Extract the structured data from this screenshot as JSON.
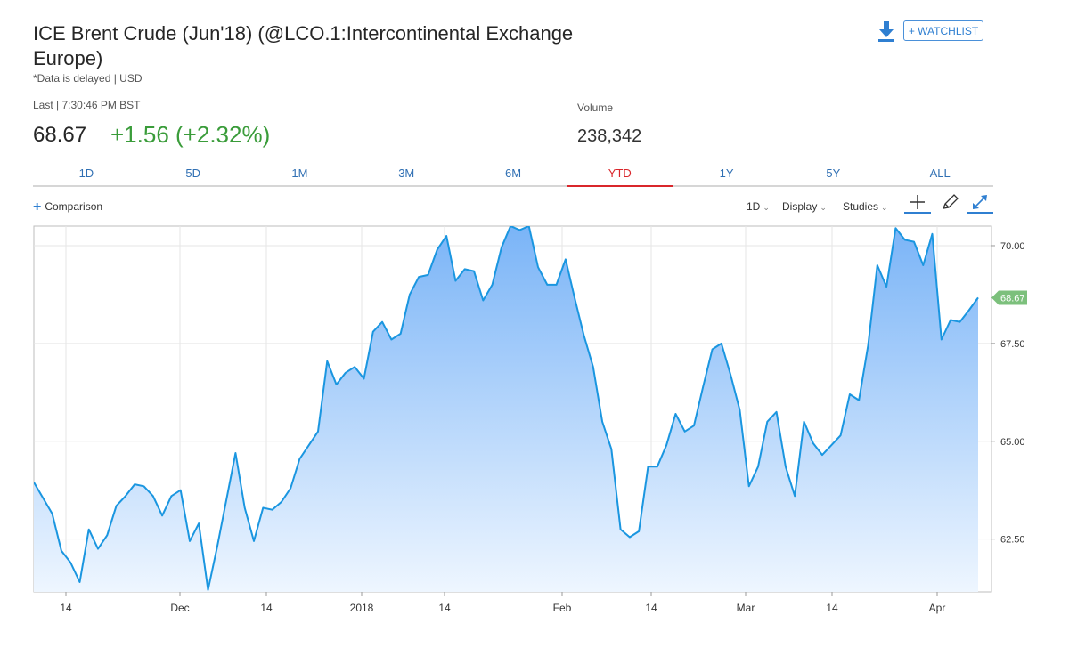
{
  "header": {
    "title": "ICE Brent Crude (Jun'18) (@LCO.1:Intercontinental Exchange Europe)",
    "subtitle": "*Data is delayed | USD",
    "watchlist_label": "+ WATCHLIST",
    "download_icon": "download-icon"
  },
  "quote": {
    "last_label": "Last | 7:30:46 PM BST",
    "last_price": "68.67",
    "change": "+1.56 (+2.32%)",
    "volume_label": "Volume",
    "volume_value": "238,342"
  },
  "tabs": [
    {
      "label": "1D"
    },
    {
      "label": "5D"
    },
    {
      "label": "1M"
    },
    {
      "label": "3M"
    },
    {
      "label": "6M"
    },
    {
      "label": "YTD",
      "active": true
    },
    {
      "label": "1Y"
    },
    {
      "label": "5Y"
    },
    {
      "label": "ALL"
    }
  ],
  "toolbar": {
    "comparison_label": "Comparison",
    "interval_label": "1D",
    "display_label": "Display",
    "studies_label": "Studies"
  },
  "colors": {
    "line": "#1a96e0",
    "area_top": "#7ab4f7",
    "area_bottom": "#eef6ff",
    "positive": "#3a9c3a",
    "active_tab": "#d9262b",
    "last_marker": "#7cc07c"
  },
  "chart_data": {
    "type": "area",
    "x_tick_labels": [
      "14",
      "Dec",
      "14",
      "2018",
      "14",
      "Feb",
      "14",
      "Mar",
      "14",
      "Apr"
    ],
    "y_ticks": [
      "62.50",
      "65.00",
      "67.50",
      "70.00"
    ],
    "y_range": [
      61.15,
      70.5
    ],
    "last_value_label": "68.67",
    "grid": true,
    "values": [
      63.95,
      63.55,
      63.15,
      62.2,
      61.9,
      61.4,
      62.75,
      62.25,
      62.6,
      63.35,
      63.6,
      63.9,
      63.85,
      63.6,
      63.1,
      63.6,
      63.75,
      62.45,
      62.9,
      61.2,
      62.3,
      63.5,
      64.7,
      63.3,
      62.45,
      63.3,
      63.25,
      63.45,
      63.8,
      64.55,
      64.9,
      65.25,
      67.05,
      66.45,
      66.75,
      66.9,
      66.6,
      67.8,
      68.05,
      67.6,
      67.75,
      68.75,
      69.2,
      69.25,
      69.9,
      70.25,
      69.1,
      69.4,
      69.35,
      68.6,
      69.0,
      69.95,
      70.5,
      70.4,
      70.5,
      69.45,
      69.0,
      69.0,
      69.65,
      68.65,
      67.7,
      66.9,
      65.5,
      64.8,
      62.75,
      62.55,
      62.7,
      64.35,
      64.35,
      64.9,
      65.7,
      65.25,
      65.4,
      66.4,
      67.35,
      67.5,
      66.7,
      65.8,
      63.85,
      64.35,
      65.5,
      65.75,
      64.35,
      63.6,
      65.5,
      64.95,
      64.65,
      64.9,
      65.15,
      66.2,
      66.05,
      67.45,
      69.5,
      68.95,
      70.45,
      70.15,
      70.1,
      69.5,
      70.3,
      67.6,
      68.1,
      68.05,
      68.35,
      68.67
    ]
  }
}
